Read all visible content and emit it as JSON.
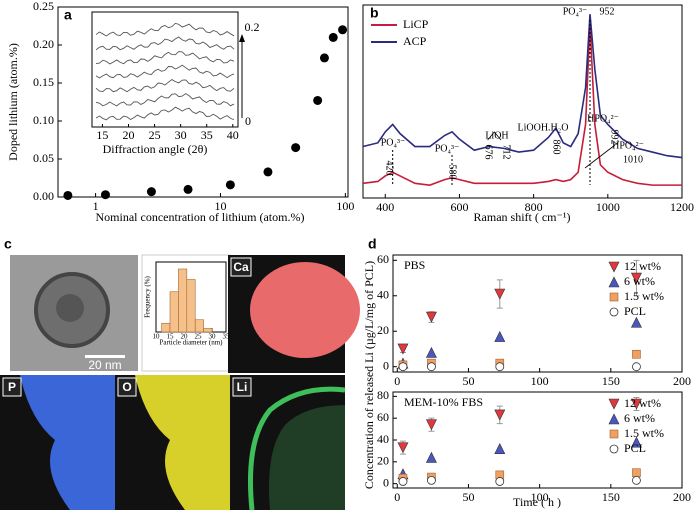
{
  "chart_data": [
    {
      "panel": "a",
      "type": "scatter",
      "xlabel": "Nominal concentration of lithium (atom.%)",
      "ylabel": "Doped lithium (atom.%)",
      "xscale": "log",
      "xlim": [
        0.5,
        105
      ],
      "xticks": [
        1,
        10,
        100
      ],
      "ylim": [
        0,
        0.25
      ],
      "yticks": [
        {
          "value": 0,
          "label": "0.00"
        },
        {
          "value": 0.05,
          "label": "0.05"
        },
        {
          "value": 0.1,
          "label": "0.10"
        },
        {
          "value": 0.15,
          "label": "0.15"
        },
        {
          "value": 0.2,
          "label": "0.20"
        },
        {
          "value": 0.25,
          "label": "0.25"
        }
      ],
      "x": [
        0.6,
        1.2,
        2.8,
        5.5,
        12,
        24,
        40,
        60,
        68,
        80,
        95
      ],
      "values": [
        0.002,
        0.003,
        0.007,
        0.01,
        0.016,
        0.033,
        0.065,
        0.127,
        0.183,
        0.21,
        0.22
      ],
      "color": "#000000",
      "inset": {
        "xlabel": "Diffraction angle (2θ)",
        "xlim": [
          13,
          41
        ],
        "xticks": [
          15,
          20,
          25,
          30,
          35,
          40
        ],
        "annotations": [
          "0.2",
          "0"
        ]
      }
    },
    {
      "panel": "b",
      "type": "line",
      "xlabel": "Raman shift ( cm⁻¹)",
      "xlim": [
        340,
        1200
      ],
      "xticks": [
        400,
        600,
        800,
        1000,
        1200
      ],
      "ylim": [
        0,
        105
      ],
      "x": [
        340,
        380,
        400,
        420,
        440,
        480,
        520,
        560,
        580,
        600,
        640,
        680,
        720,
        760,
        800,
        840,
        860,
        880,
        900,
        920,
        940,
        952,
        965,
        980,
        1000,
        1040,
        1080,
        1120,
        1160,
        1200
      ],
      "series": [
        {
          "name": "LiCP",
          "color": "#c41e3a",
          "values": [
            8,
            9,
            12,
            14,
            12,
            8,
            7,
            10,
            11,
            10,
            8,
            8,
            8,
            8,
            8,
            9,
            10,
            9,
            10,
            14,
            40,
            95,
            40,
            18,
            14,
            10,
            8,
            7,
            7,
            7
          ]
        },
        {
          "name": "ACP",
          "color": "#2b2b7f",
          "values": [
            28,
            30,
            36,
            40,
            35,
            28,
            28,
            34,
            36,
            32,
            26,
            28,
            27,
            25,
            26,
            33,
            38,
            30,
            28,
            35,
            60,
            100,
            70,
            45,
            40,
            32,
            27,
            25,
            23,
            22
          ]
        }
      ],
      "legend": "upper left",
      "annotations": [
        "PO₄³⁻",
        "952",
        "PO₄³⁻",
        "420",
        "PO₄³⁻",
        "580",
        "LiOH",
        "676",
        "712",
        "LiOOH.H₂O",
        "860",
        "HPO₄²⁻",
        "992",
        "HPO₄²⁻",
        "1010"
      ]
    },
    {
      "panel": "c",
      "type": "histogram",
      "xlabel": "Particle diameter (nm)",
      "ylabel": "Frequency (%)",
      "bins": [
        12,
        15,
        18,
        21,
        24,
        27,
        30
      ],
      "values": [
        5,
        23,
        36,
        30,
        7,
        2
      ],
      "color": "#f5c08a",
      "xlim": [
        10,
        35
      ],
      "xticks": [
        10,
        15,
        20,
        25,
        30,
        35
      ],
      "ylim": [
        0,
        40
      ],
      "image_labels": [
        "20 nm",
        "Ca",
        "P",
        "O",
        "Li"
      ]
    },
    {
      "panel": "d",
      "type": "scatter",
      "title": "PBS",
      "ylabel": "Concentration of released Li (µg/L/mg of PCL)",
      "xlim": [
        -3,
        200
      ],
      "xticks": [
        0,
        50,
        100,
        150,
        200
      ],
      "ylim": [
        -3,
        63
      ],
      "yticks": [
        0,
        20,
        40,
        60
      ],
      "x": [
        4,
        24,
        72,
        168
      ],
      "series": [
        {
          "name": "12 wt%",
          "color": "#e0383c",
          "marker": "triangle-down",
          "values": [
            10,
            28,
            41,
            50
          ],
          "errors": [
            2,
            3,
            8,
            10
          ]
        },
        {
          "name": "6 wt%",
          "color": "#4a57c0",
          "marker": "triangle",
          "values": [
            2,
            8,
            17,
            25
          ]
        },
        {
          "name": "1.5 wt%",
          "color": "#f0a060",
          "marker": "square",
          "values": [
            1,
            2,
            2,
            7
          ]
        },
        {
          "name": "PCL",
          "color": "#ffffff",
          "marker": "circle",
          "values": [
            0,
            0,
            0,
            0
          ]
        }
      ]
    },
    {
      "type": "scatter",
      "title": "MEM-10% FBS",
      "xlabel": "Time ( h )",
      "xlim": [
        -3,
        200
      ],
      "xticks": [
        0,
        50,
        100,
        150,
        200
      ],
      "ylim": [
        -4,
        84
      ],
      "yticks": [
        0,
        20,
        40,
        60,
        80
      ],
      "x": [
        4,
        24,
        72,
        168
      ],
      "series": [
        {
          "name": "12 wt%",
          "color": "#e0383c",
          "marker": "triangle-down",
          "values": [
            33,
            54,
            63,
            73
          ],
          "errors": [
            6,
            6,
            8,
            6
          ]
        },
        {
          "name": "6 wt%",
          "color": "#4a57c0",
          "marker": "triangle",
          "values": [
            9,
            24,
            32,
            38
          ]
        },
        {
          "name": "1.5 wt%",
          "color": "#f0a060",
          "marker": "square",
          "values": [
            5,
            6,
            8,
            10
          ]
        },
        {
          "name": "PCL",
          "color": "#ffffff",
          "marker": "circle",
          "values": [
            2,
            3,
            2,
            3
          ]
        }
      ]
    }
  ]
}
